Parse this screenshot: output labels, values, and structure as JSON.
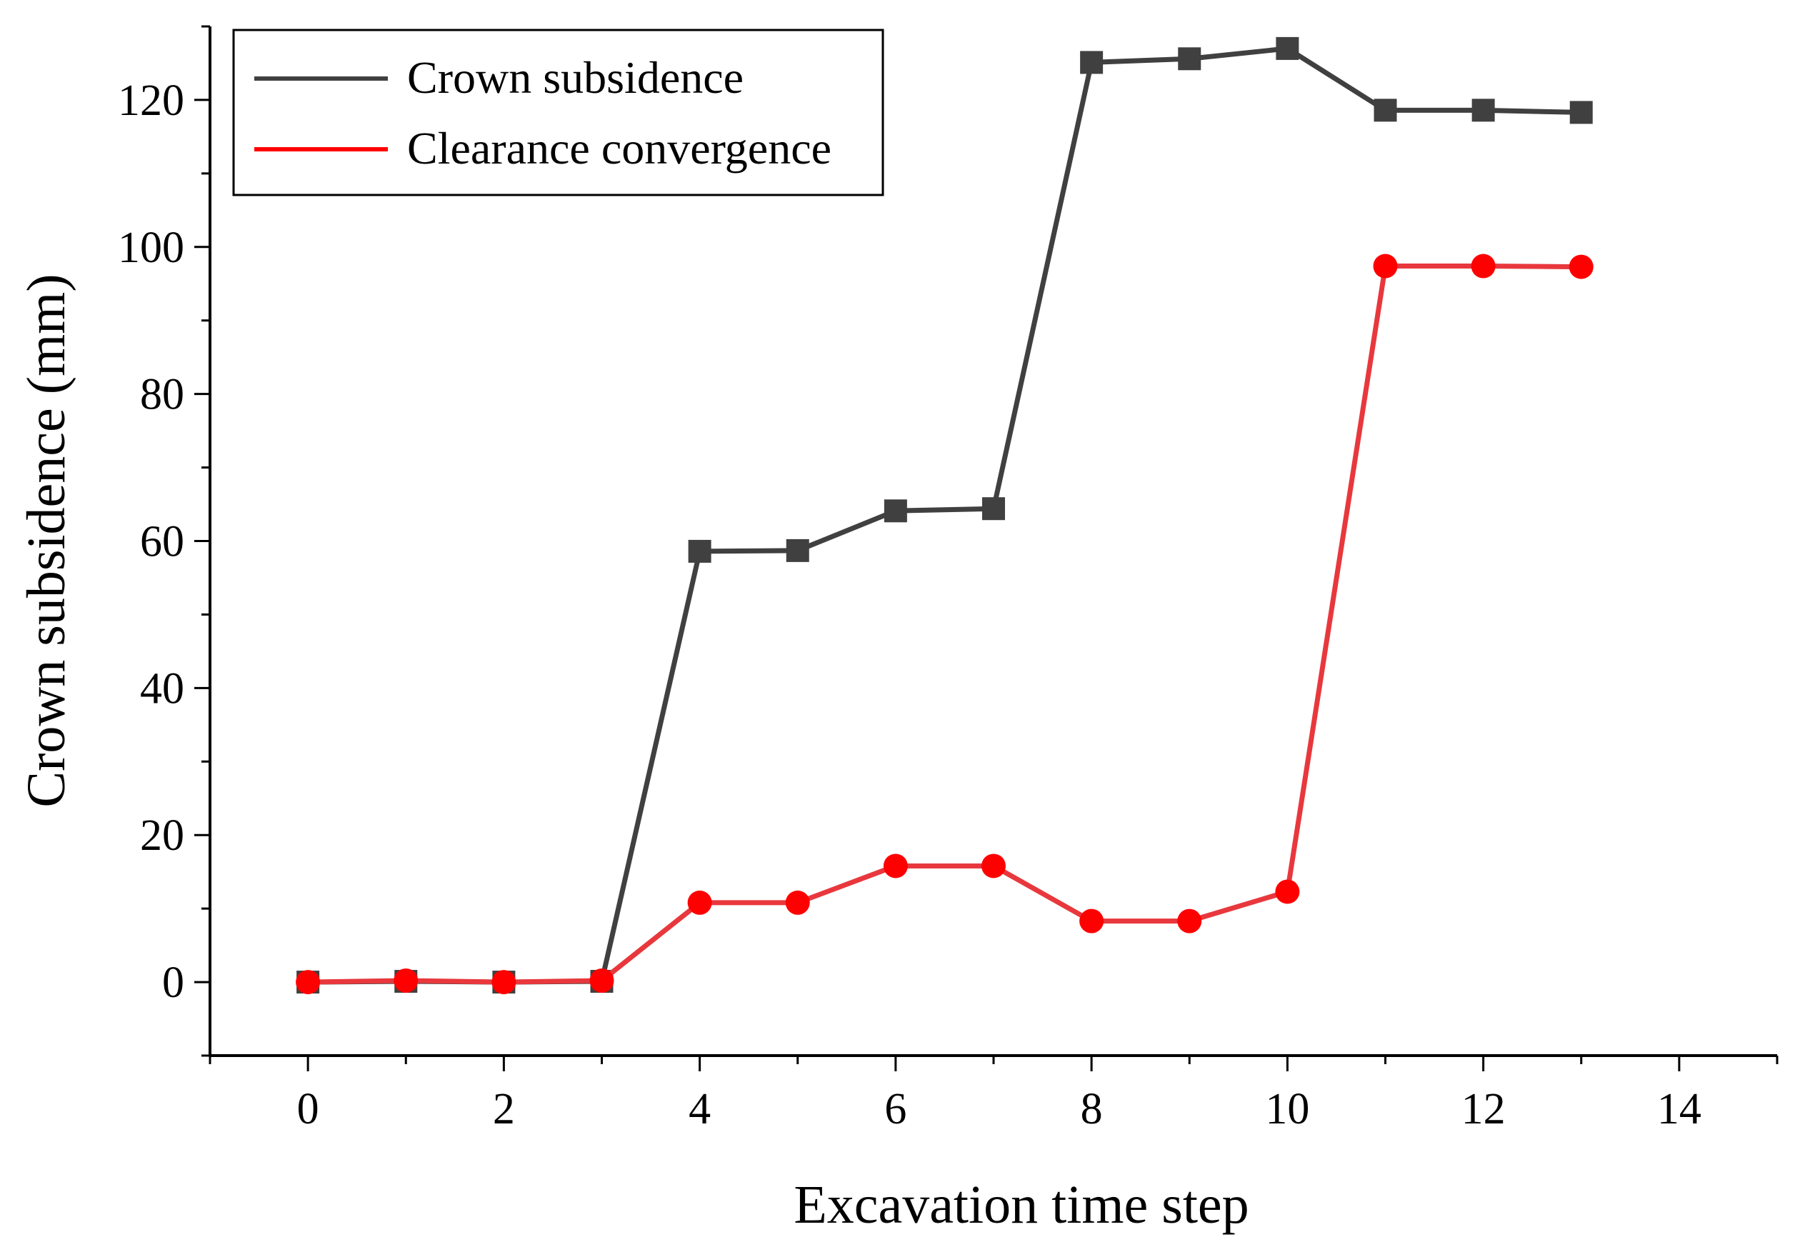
{
  "chart_data": {
    "type": "line",
    "title": "",
    "xlabel": "Excavation time step",
    "ylabel": "Crown subsidence (mm)",
    "xlim": [
      -1,
      15
    ],
    "ylim": [
      -10,
      130
    ],
    "x_ticks": [
      0,
      2,
      4,
      6,
      8,
      10,
      12,
      14
    ],
    "y_ticks": [
      0,
      20,
      40,
      60,
      80,
      100,
      120
    ],
    "legend_position": "top-left",
    "series": [
      {
        "name": "Crown subsidence",
        "color": "#404040",
        "marker": "square",
        "x": [
          0,
          1,
          2,
          3,
          4,
          5,
          6,
          7,
          8,
          9,
          10,
          11,
          12,
          13
        ],
        "values": [
          0,
          0.1,
          0,
          0.1,
          58.6,
          58.7,
          64.1,
          64.4,
          125.1,
          125.6,
          127.0,
          118.6,
          118.6,
          118.3
        ]
      },
      {
        "name": "Clearance convergence",
        "color": "#ff0000",
        "line_color": "#e8383d",
        "marker": "circle",
        "x": [
          0,
          1,
          2,
          3,
          4,
          5,
          6,
          7,
          8,
          9,
          10,
          11,
          12,
          13
        ],
        "values": [
          0,
          0.2,
          0,
          0.2,
          10.8,
          10.8,
          15.8,
          15.8,
          8.3,
          8.3,
          12.3,
          97.4,
          97.4,
          97.3
        ]
      }
    ]
  }
}
